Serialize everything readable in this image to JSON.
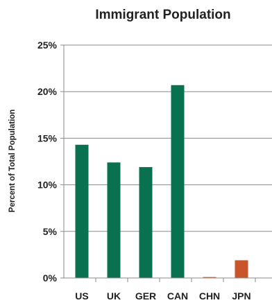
{
  "chart_data": {
    "type": "bar",
    "title": "Immigrant Population",
    "ylabel": "Percent of Total Population",
    "xlabel": "",
    "categories": [
      "US",
      "UK",
      "GER",
      "CAN",
      "CHN",
      "JPN"
    ],
    "values": [
      14.3,
      12.4,
      11.9,
      20.7,
      0.1,
      1.9
    ],
    "colors": [
      "#097150",
      "#097150",
      "#097150",
      "#097150",
      "#c8562a",
      "#c8562a"
    ],
    "ylim": [
      0,
      25
    ],
    "yticks": [
      0,
      5,
      10,
      15,
      20,
      25
    ],
    "ytick_labels": [
      "0%",
      "5%",
      "10%",
      "15%",
      "20%",
      "25%"
    ],
    "grid": true,
    "gridline_color": "#8a8a8a",
    "axis_color": "#8a8a8a"
  }
}
